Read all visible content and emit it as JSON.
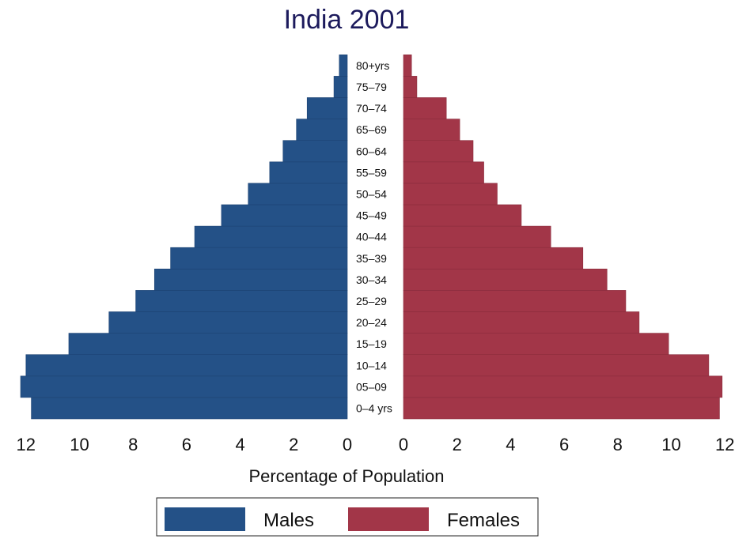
{
  "chart_data": {
    "type": "bar",
    "title": "India 2001",
    "xlabel": "Percentage of Population",
    "ylabel": "",
    "categories": [
      "0–4 yrs",
      "05–09",
      "10–14",
      "15–19",
      "20–24",
      "25–29",
      "30–34",
      "35–39",
      "40–44",
      "45–49",
      "50–54",
      "55–59",
      "60–64",
      "65–69",
      "70–74",
      "75–79",
      "80+yrs"
    ],
    "series": [
      {
        "name": "Males",
        "side": "left",
        "color": "#245187",
        "values": [
          11.8,
          12.2,
          12.0,
          10.4,
          8.9,
          7.9,
          7.2,
          6.6,
          5.7,
          4.7,
          3.7,
          2.9,
          2.4,
          1.9,
          1.5,
          0.5,
          0.3
        ]
      },
      {
        "name": "Females",
        "side": "right",
        "color": "#a23648",
        "values": [
          11.8,
          11.9,
          11.4,
          9.9,
          8.8,
          8.3,
          7.6,
          6.7,
          5.5,
          4.4,
          3.5,
          3.0,
          2.6,
          2.1,
          1.6,
          0.5,
          0.3
        ]
      }
    ],
    "xlim": [
      0,
      12
    ],
    "xticks": [
      "12",
      "10",
      "8",
      "6",
      "4",
      "2",
      "0",
      "0",
      "2",
      "4",
      "6",
      "8",
      "10",
      "12"
    ],
    "grid": false,
    "legend_position": "bottom",
    "legend": [
      "Males",
      "Females"
    ]
  }
}
